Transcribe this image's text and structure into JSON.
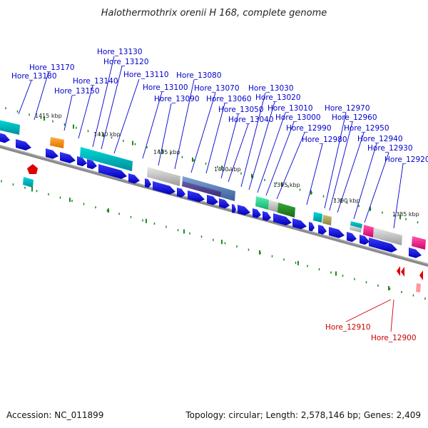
{
  "title": "Halothermothrix orenii H 168, complete genome",
  "footer": {
    "accession": "Accession: NC_011899",
    "summary": "Topology: circular; Length: 2,578,146 bp; Genes: 2,409"
  },
  "colors": {
    "backbone": "#8a8a8a",
    "cds": "#1a1ae6",
    "tick": "#1a8c1a",
    "label_blue": "#0000cc",
    "label_red": "#cc0000"
  },
  "kbp_labels": [
    "1415 kbp",
    "1410 kbp",
    "1405 kbp",
    "1400 kbp",
    "1395 kbp",
    "1390 kbp",
    "1385 kbp"
  ],
  "gene_labels_top": [
    "Hore_13180",
    "Hore_13170",
    "Hore_13150",
    "Hore_13140",
    "Hore_13130",
    "Hore_13120",
    "Hore_13110",
    "Hore_13100",
    "Hore_13090",
    "Hore_13080",
    "Hore_13070",
    "Hore_13060",
    "Hore_13050",
    "Hore_13040",
    "Hore_13030",
    "Hore_13020",
    "Hore_13010",
    "Hore_13000",
    "Hore_12990",
    "Hore_12980",
    "Hore_12970",
    "Hore_12960",
    "Hore_12950",
    "Hore_12940",
    "Hore_12930",
    "Hore_12920"
  ],
  "gene_labels_bottom": [
    "Hore_12910",
    "Hore_12900"
  ]
}
